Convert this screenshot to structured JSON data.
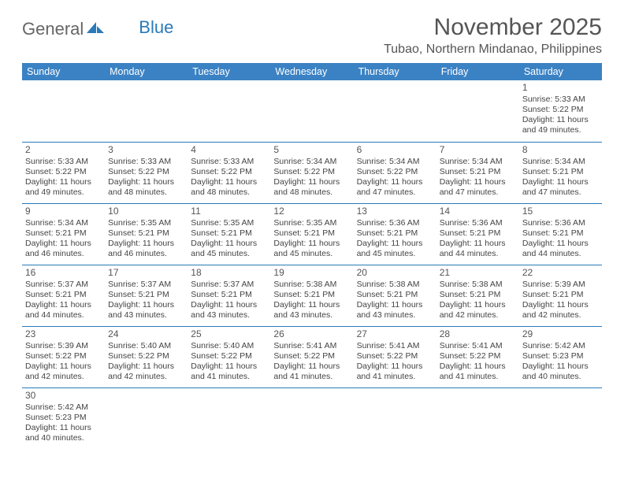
{
  "logo": {
    "text1": "General",
    "text2": "Blue"
  },
  "title": "November 2025",
  "location": "Tubao, Northern Mindanao, Philippines",
  "header_color": "#3b82c4",
  "border_color": "#2a7ab8",
  "weekdays": [
    "Sunday",
    "Monday",
    "Tuesday",
    "Wednesday",
    "Thursday",
    "Friday",
    "Saturday"
  ],
  "weeks": [
    [
      null,
      null,
      null,
      null,
      null,
      null,
      {
        "d": "1",
        "sr": "Sunrise: 5:33 AM",
        "ss": "Sunset: 5:22 PM",
        "dl1": "Daylight: 11 hours",
        "dl2": "and 49 minutes."
      }
    ],
    [
      {
        "d": "2",
        "sr": "Sunrise: 5:33 AM",
        "ss": "Sunset: 5:22 PM",
        "dl1": "Daylight: 11 hours",
        "dl2": "and 49 minutes."
      },
      {
        "d": "3",
        "sr": "Sunrise: 5:33 AM",
        "ss": "Sunset: 5:22 PM",
        "dl1": "Daylight: 11 hours",
        "dl2": "and 48 minutes."
      },
      {
        "d": "4",
        "sr": "Sunrise: 5:33 AM",
        "ss": "Sunset: 5:22 PM",
        "dl1": "Daylight: 11 hours",
        "dl2": "and 48 minutes."
      },
      {
        "d": "5",
        "sr": "Sunrise: 5:34 AM",
        "ss": "Sunset: 5:22 PM",
        "dl1": "Daylight: 11 hours",
        "dl2": "and 48 minutes."
      },
      {
        "d": "6",
        "sr": "Sunrise: 5:34 AM",
        "ss": "Sunset: 5:22 PM",
        "dl1": "Daylight: 11 hours",
        "dl2": "and 47 minutes."
      },
      {
        "d": "7",
        "sr": "Sunrise: 5:34 AM",
        "ss": "Sunset: 5:21 PM",
        "dl1": "Daylight: 11 hours",
        "dl2": "and 47 minutes."
      },
      {
        "d": "8",
        "sr": "Sunrise: 5:34 AM",
        "ss": "Sunset: 5:21 PM",
        "dl1": "Daylight: 11 hours",
        "dl2": "and 47 minutes."
      }
    ],
    [
      {
        "d": "9",
        "sr": "Sunrise: 5:34 AM",
        "ss": "Sunset: 5:21 PM",
        "dl1": "Daylight: 11 hours",
        "dl2": "and 46 minutes."
      },
      {
        "d": "10",
        "sr": "Sunrise: 5:35 AM",
        "ss": "Sunset: 5:21 PM",
        "dl1": "Daylight: 11 hours",
        "dl2": "and 46 minutes."
      },
      {
        "d": "11",
        "sr": "Sunrise: 5:35 AM",
        "ss": "Sunset: 5:21 PM",
        "dl1": "Daylight: 11 hours",
        "dl2": "and 45 minutes."
      },
      {
        "d": "12",
        "sr": "Sunrise: 5:35 AM",
        "ss": "Sunset: 5:21 PM",
        "dl1": "Daylight: 11 hours",
        "dl2": "and 45 minutes."
      },
      {
        "d": "13",
        "sr": "Sunrise: 5:36 AM",
        "ss": "Sunset: 5:21 PM",
        "dl1": "Daylight: 11 hours",
        "dl2": "and 45 minutes."
      },
      {
        "d": "14",
        "sr": "Sunrise: 5:36 AM",
        "ss": "Sunset: 5:21 PM",
        "dl1": "Daylight: 11 hours",
        "dl2": "and 44 minutes."
      },
      {
        "d": "15",
        "sr": "Sunrise: 5:36 AM",
        "ss": "Sunset: 5:21 PM",
        "dl1": "Daylight: 11 hours",
        "dl2": "and 44 minutes."
      }
    ],
    [
      {
        "d": "16",
        "sr": "Sunrise: 5:37 AM",
        "ss": "Sunset: 5:21 PM",
        "dl1": "Daylight: 11 hours",
        "dl2": "and 44 minutes."
      },
      {
        "d": "17",
        "sr": "Sunrise: 5:37 AM",
        "ss": "Sunset: 5:21 PM",
        "dl1": "Daylight: 11 hours",
        "dl2": "and 43 minutes."
      },
      {
        "d": "18",
        "sr": "Sunrise: 5:37 AM",
        "ss": "Sunset: 5:21 PM",
        "dl1": "Daylight: 11 hours",
        "dl2": "and 43 minutes."
      },
      {
        "d": "19",
        "sr": "Sunrise: 5:38 AM",
        "ss": "Sunset: 5:21 PM",
        "dl1": "Daylight: 11 hours",
        "dl2": "and 43 minutes."
      },
      {
        "d": "20",
        "sr": "Sunrise: 5:38 AM",
        "ss": "Sunset: 5:21 PM",
        "dl1": "Daylight: 11 hours",
        "dl2": "and 43 minutes."
      },
      {
        "d": "21",
        "sr": "Sunrise: 5:38 AM",
        "ss": "Sunset: 5:21 PM",
        "dl1": "Daylight: 11 hours",
        "dl2": "and 42 minutes."
      },
      {
        "d": "22",
        "sr": "Sunrise: 5:39 AM",
        "ss": "Sunset: 5:21 PM",
        "dl1": "Daylight: 11 hours",
        "dl2": "and 42 minutes."
      }
    ],
    [
      {
        "d": "23",
        "sr": "Sunrise: 5:39 AM",
        "ss": "Sunset: 5:22 PM",
        "dl1": "Daylight: 11 hours",
        "dl2": "and 42 minutes."
      },
      {
        "d": "24",
        "sr": "Sunrise: 5:40 AM",
        "ss": "Sunset: 5:22 PM",
        "dl1": "Daylight: 11 hours",
        "dl2": "and 42 minutes."
      },
      {
        "d": "25",
        "sr": "Sunrise: 5:40 AM",
        "ss": "Sunset: 5:22 PM",
        "dl1": "Daylight: 11 hours",
        "dl2": "and 41 minutes."
      },
      {
        "d": "26",
        "sr": "Sunrise: 5:41 AM",
        "ss": "Sunset: 5:22 PM",
        "dl1": "Daylight: 11 hours",
        "dl2": "and 41 minutes."
      },
      {
        "d": "27",
        "sr": "Sunrise: 5:41 AM",
        "ss": "Sunset: 5:22 PM",
        "dl1": "Daylight: 11 hours",
        "dl2": "and 41 minutes."
      },
      {
        "d": "28",
        "sr": "Sunrise: 5:41 AM",
        "ss": "Sunset: 5:22 PM",
        "dl1": "Daylight: 11 hours",
        "dl2": "and 41 minutes."
      },
      {
        "d": "29",
        "sr": "Sunrise: 5:42 AM",
        "ss": "Sunset: 5:23 PM",
        "dl1": "Daylight: 11 hours",
        "dl2": "and 40 minutes."
      }
    ],
    [
      {
        "d": "30",
        "sr": "Sunrise: 5:42 AM",
        "ss": "Sunset: 5:23 PM",
        "dl1": "Daylight: 11 hours",
        "dl2": "and 40 minutes."
      },
      null,
      null,
      null,
      null,
      null,
      null
    ]
  ]
}
